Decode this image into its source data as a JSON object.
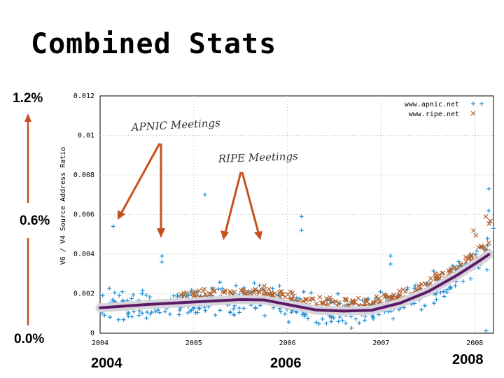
{
  "title": "Combined Stats",
  "side_labels": {
    "top": "1.2%",
    "middle": "0.6%",
    "bottom": "0.0%"
  },
  "year_labels": [
    "2004",
    "2006",
    "2008"
  ],
  "annotations": {
    "apnic": "APNIC Meetings",
    "ripe": "RIPE Meetings"
  },
  "colors": {
    "apnic": "#1f8fd6",
    "ripe": "#b0622c",
    "trend": "#5a1a66",
    "trend_halo": "#d8d4dc",
    "arrow": "#c8501e"
  },
  "chart_data": {
    "type": "scatter",
    "ylabel": "V6 / V4 Source Address Ratio",
    "xlim": [
      2004.0,
      2008.2
    ],
    "ylim": [
      0,
      0.012
    ],
    "x_ticks": [
      2004,
      2005,
      2006,
      2007,
      2008
    ],
    "y_ticks": [
      "0",
      "0.002",
      "0.004",
      "0.006",
      "0.008",
      "0.01",
      "0.012"
    ],
    "grid": true,
    "legend_position": "top-right",
    "series": [
      {
        "name": "www.apnic.net",
        "marker": "plus",
        "color": "#1f8fd6"
      },
      {
        "name": "www.ripe.net",
        "marker": "cross",
        "color": "#b0622c"
      }
    ],
    "trend": [
      [
        2004.0,
        0.00128
      ],
      [
        2004.5,
        0.00145
      ],
      [
        2005.0,
        0.00158
      ],
      [
        2005.5,
        0.0017
      ],
      [
        2005.75,
        0.00168
      ],
      [
        2006.0,
        0.00145
      ],
      [
        2006.3,
        0.00118
      ],
      [
        2006.6,
        0.00112
      ],
      [
        2006.9,
        0.00116
      ],
      [
        2007.2,
        0.00152
      ],
      [
        2007.5,
        0.0021
      ],
      [
        2007.8,
        0.0029
      ],
      [
        2008.0,
        0.0035
      ],
      [
        2008.15,
        0.00398
      ]
    ],
    "outliers": [
      [
        2004.14,
        0.0054
      ],
      [
        2004.66,
        0.0039
      ],
      [
        2004.66,
        0.0036
      ],
      [
        2005.12,
        0.007
      ],
      [
        2006.15,
        0.0059
      ],
      [
        2006.15,
        0.0052
      ],
      [
        2007.1,
        0.0035
      ],
      [
        2007.1,
        0.0039
      ],
      [
        2008.15,
        0.0073
      ],
      [
        2008.15,
        0.0062
      ],
      [
        2008.2,
        0.0053
      ],
      [
        2008.12,
        0.00012
      ]
    ]
  }
}
